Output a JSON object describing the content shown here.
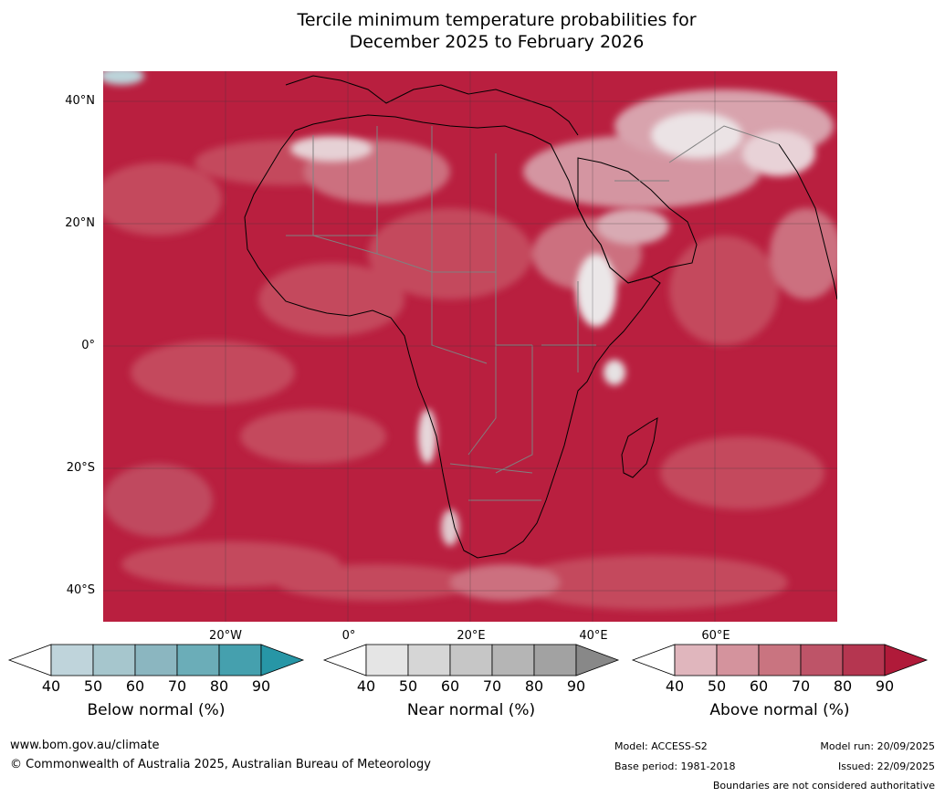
{
  "title": {
    "line1": "Tercile minimum temperature probabilities for",
    "line2": "December 2025 to February 2026"
  },
  "map": {
    "region": "Africa and surrounding oceans",
    "lat_labels": [
      "40°N",
      "20°N",
      "0°",
      "20°S",
      "40°S"
    ],
    "lon_labels": [
      "20°W",
      "0°",
      "20°E",
      "40°E",
      "60°E"
    ],
    "colors": {
      "ocean_dominant": "#b51d3c",
      "land_dominant": "#b51d3c",
      "mid_red": "#c1485c",
      "light_red": "#cc6f7f",
      "pale": "#dfb9c0",
      "near_white": "#e8e4e5",
      "gray_cell": "#a0a0a0",
      "blue_cell": "#bbd3da",
      "coast": "#000000",
      "border": "#808080",
      "grid": "#555555"
    }
  },
  "legends": [
    {
      "name": "below",
      "caption": "Below normal (%)",
      "ticks": [
        "40",
        "50",
        "60",
        "70",
        "80",
        "90"
      ],
      "colors": [
        "#bfd4db",
        "#a6c6cd",
        "#8bb6c0",
        "#6badb8",
        "#45a0ae",
        "#2796a6"
      ]
    },
    {
      "name": "near",
      "caption": "Near normal (%)",
      "ticks": [
        "40",
        "50",
        "60",
        "70",
        "80",
        "90"
      ],
      "colors": [
        "#e5e5e5",
        "#d6d6d6",
        "#c6c6c6",
        "#b5b5b5",
        "#a2a2a2",
        "#888888"
      ]
    },
    {
      "name": "above",
      "caption": "Above normal (%)",
      "ticks": [
        "40",
        "50",
        "60",
        "70",
        "80",
        "90"
      ],
      "colors": [
        "#e0b6bd",
        "#d4939d",
        "#c97480",
        "#be5468",
        "#b53650",
        "#b01a39"
      ]
    }
  ],
  "footer": {
    "website": "www.bom.gov.au/climate",
    "copyright": "© Commonwealth of Australia 2025, Australian Bureau of Meteorology",
    "model": "Model: ACCESS-S2",
    "base_period": "Base period: 1981-2018",
    "model_run": "Model run: 20/09/2025",
    "issued": "Issued: 22/09/2025",
    "disclaimer": "Boundaries are not considered authoritative"
  }
}
